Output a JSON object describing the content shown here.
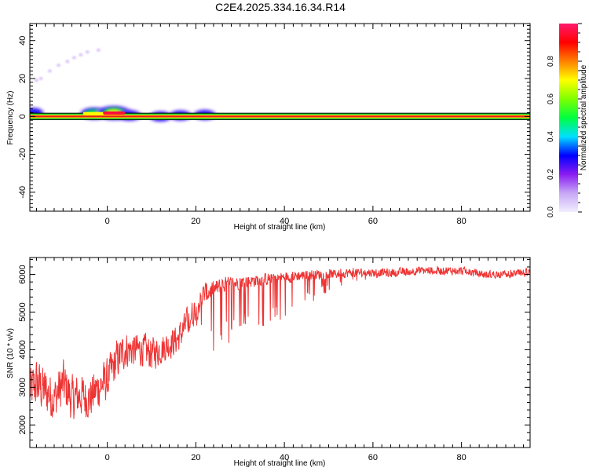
{
  "title": "C2E4.2025.334.16.34.R14",
  "chart_data": [
    {
      "type": "heatmap",
      "xlabel": "Height of straight line (km)",
      "ylabel": "Frequency (Hz)",
      "xlim": [
        -17.5,
        95.5
      ],
      "ylim": [
        -50,
        49
      ],
      "x_ticks": [
        0,
        20,
        40,
        60,
        80
      ],
      "x_tick_labels": [
        "0",
        "20",
        "40",
        "60",
        "80"
      ],
      "y_ticks": [
        40,
        20,
        0,
        -20,
        -40
      ],
      "y_tick_labels": [
        "40",
        "20",
        "0",
        "-20",
        "-40"
      ],
      "signal_band": {
        "frequency_center": 0,
        "frequency_min": -1.5,
        "frequency_max": 1.5
      },
      "features": [
        {
          "x": -16.8,
          "freq": 2.0,
          "amplitude": 0.25
        },
        {
          "x": -3,
          "freq": 1.5,
          "amplitude": 0.5
        },
        {
          "x": 1.5,
          "freq": 1.8,
          "amplitude": 0.75
        },
        {
          "x": 5,
          "freq": 0.5,
          "amplitude": 0.35
        },
        {
          "x": 12,
          "freq": 0.0,
          "amplitude": 0.3
        },
        {
          "x": 16.5,
          "freq": 0.5,
          "amplitude": 0.3
        },
        {
          "x": 22,
          "freq": 0.8,
          "amplitude": 0.3
        }
      ],
      "faint_points": [
        {
          "x": -16,
          "freq": 19
        },
        {
          "x": -15,
          "freq": 20
        },
        {
          "x": -13,
          "freq": 24
        },
        {
          "x": -11,
          "freq": 27
        },
        {
          "x": -9,
          "freq": 29
        },
        {
          "x": -7.5,
          "freq": 31
        },
        {
          "x": -6,
          "freq": 32.5
        },
        {
          "x": -4.5,
          "freq": 34
        },
        {
          "x": -2,
          "freq": 35
        }
      ],
      "grid": false,
      "colorbar": {
        "label": "Normalized spectral amplitude",
        "range": [
          0.0,
          1.0
        ],
        "ticks": [
          0.0,
          0.2,
          0.4,
          0.6,
          0.8
        ],
        "tick_labels": [
          "0.0",
          "0.2",
          "0.4",
          "0.6",
          "0.8"
        ],
        "colors": [
          "#f2eefe",
          "#c8a8f6",
          "#8a1cf2",
          "#0000ff",
          "#00e0ff",
          "#00ff40",
          "#7fff00",
          "#ffff00",
          "#ff8000",
          "#ff0000",
          "#ff1b6e"
        ]
      },
      "colors": {
        "band_fill": "#e02020",
        "band_edge": "#00e040",
        "band_outline": "#000000"
      }
    },
    {
      "type": "line",
      "xlabel": "Height of straight line (km)",
      "ylabel": "SNR (10 * v/v)",
      "xlim": [
        -17.5,
        95.5
      ],
      "ylim": [
        1400,
        6450
      ],
      "x_ticks": [
        0,
        20,
        40,
        60,
        80
      ],
      "x_tick_labels": [
        "0",
        "20",
        "40",
        "60",
        "80"
      ],
      "y_ticks": [
        2000,
        3000,
        4000,
        5000,
        6000
      ],
      "y_tick_labels": [
        "2000",
        "3000",
        "4000",
        "5000",
        "6000"
      ],
      "series": [
        {
          "color": "#ee3333",
          "x": [
            -17.5,
            -16,
            -14,
            -12,
            -10,
            -8,
            -6,
            -4,
            -2,
            0,
            2,
            4,
            6,
            8,
            10,
            12,
            14,
            16,
            18,
            20,
            22,
            24,
            26,
            28,
            30,
            34,
            38,
            42,
            46,
            50,
            55,
            60,
            65,
            70,
            75,
            80,
            85,
            90,
            95.5
          ],
          "y": [
            2900,
            3100,
            2900,
            2700,
            3100,
            2700,
            2800,
            2700,
            3000,
            3200,
            3700,
            4000,
            4000,
            4000,
            3900,
            4000,
            4150,
            4300,
            4700,
            5100,
            5500,
            5600,
            5700,
            5750,
            5800,
            5850,
            5900,
            5950,
            6000,
            6000,
            6050,
            6050,
            6050,
            6100,
            6100,
            6100,
            6000,
            6000,
            6050
          ],
          "noise_amplitude": [
            600,
            700,
            650,
            600,
            650,
            600,
            600,
            550,
            600,
            550,
            550,
            500,
            450,
            450,
            450,
            400,
            400,
            400,
            400,
            350,
            300,
            250,
            220,
            200,
            180,
            170,
            160,
            150,
            140,
            130,
            120,
            110,
            110,
            110,
            110,
            110,
            110,
            110,
            110
          ],
          "dip_depth": [
            0,
            0,
            0,
            0,
            0,
            0,
            0,
            0,
            0,
            0,
            0,
            0,
            0,
            0,
            0,
            0,
            0,
            0,
            0,
            400,
            1200,
            1500,
            1500,
            1400,
            1300,
            1200,
            1100,
            900,
            700,
            400,
            250,
            150,
            100,
            80,
            60,
            60,
            60,
            60,
            60
          ]
        }
      ],
      "grid": false
    }
  ]
}
